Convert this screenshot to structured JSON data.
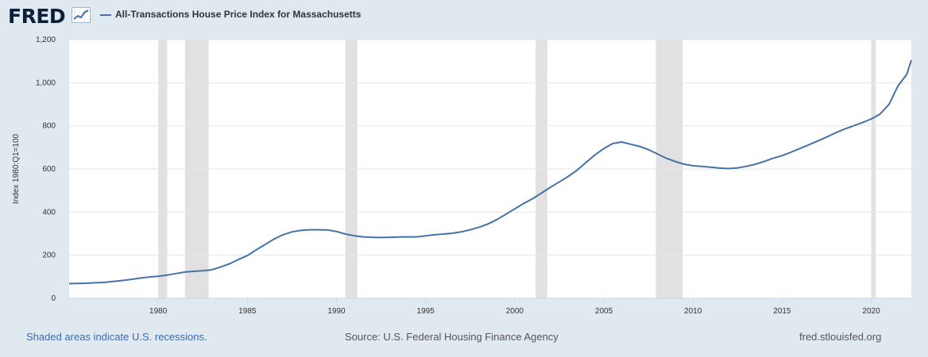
{
  "header": {
    "logo_text": "FRED",
    "logo_icon": "fred-graph-icon",
    "series_title": "All-Transactions House Price Index for Massachusetts"
  },
  "footer": {
    "recession_note": "Shaded areas indicate U.S. recessions.",
    "source": "Source: U.S. Federal Housing Finance Agency",
    "site": "fred.stlouisfed.org"
  },
  "colors": {
    "page_bg": "#e1e9f0",
    "plot_bg": "#ffffff",
    "line": "#4572a7",
    "recession": "#e1e1e1",
    "grid": "#e6e6e6"
  },
  "chart_data": {
    "type": "line",
    "title": "All-Transactions House Price Index for Massachusetts",
    "ylabel": "Index 1980:Q1=100",
    "xlabel": "",
    "xlim": [
      1975.0,
      2022.25
    ],
    "ylim": [
      0,
      1200
    ],
    "y_ticks": [
      0,
      200,
      400,
      600,
      800,
      1000,
      1200
    ],
    "y_tick_labels": [
      "0",
      "200",
      "400",
      "600",
      "800",
      "1,000",
      "1,200"
    ],
    "x_ticks": [
      1980,
      1985,
      1990,
      1995,
      2000,
      2005,
      2010,
      2015,
      2020
    ],
    "x_tick_labels": [
      "1980",
      "1985",
      "1990",
      "1995",
      "2000",
      "2005",
      "2010",
      "2015",
      "2020"
    ],
    "grid": "horizontal",
    "recessions": [
      [
        1980.0,
        1980.5
      ],
      [
        1981.5,
        1982.83
      ],
      [
        1990.5,
        1991.17
      ],
      [
        2001.17,
        2001.83
      ],
      [
        2007.92,
        2009.42
      ],
      [
        2020.0,
        2020.25
      ]
    ],
    "series": [
      {
        "name": "All-Transactions House Price Index for Massachusetts",
        "x": [
          1975.0,
          1975.5,
          1976.0,
          1976.5,
          1977.0,
          1977.5,
          1978.0,
          1978.5,
          1979.0,
          1979.5,
          1980.0,
          1980.5,
          1981.0,
          1981.5,
          1982.0,
          1982.5,
          1983.0,
          1983.5,
          1984.0,
          1984.5,
          1985.0,
          1985.5,
          1986.0,
          1986.5,
          1987.0,
          1987.5,
          1988.0,
          1988.5,
          1989.0,
          1989.5,
          1990.0,
          1990.5,
          1991.0,
          1991.5,
          1992.0,
          1992.5,
          1993.0,
          1993.5,
          1994.0,
          1994.5,
          1995.0,
          1995.5,
          1996.0,
          1996.5,
          1997.0,
          1997.5,
          1998.0,
          1998.5,
          1999.0,
          1999.5,
          2000.0,
          2000.5,
          2001.0,
          2001.5,
          2002.0,
          2002.5,
          2003.0,
          2003.5,
          2004.0,
          2004.5,
          2005.0,
          2005.5,
          2006.0,
          2006.5,
          2007.0,
          2007.5,
          2008.0,
          2008.5,
          2009.0,
          2009.5,
          2010.0,
          2010.5,
          2011.0,
          2011.5,
          2012.0,
          2012.5,
          2013.0,
          2013.5,
          2014.0,
          2014.5,
          2015.0,
          2015.5,
          2016.0,
          2016.5,
          2017.0,
          2017.5,
          2018.0,
          2018.5,
          2019.0,
          2019.5,
          2020.0,
          2020.5,
          2021.0,
          2021.5,
          2022.0,
          2022.25
        ],
        "values": [
          68,
          69,
          70,
          72,
          74,
          78,
          83,
          88,
          94,
          99,
          102,
          108,
          115,
          122,
          125,
          128,
          132,
          145,
          160,
          180,
          198,
          225,
          250,
          275,
          295,
          308,
          315,
          318,
          318,
          317,
          310,
          298,
          290,
          285,
          283,
          282,
          283,
          284,
          285,
          285,
          290,
          295,
          298,
          302,
          308,
          318,
          330,
          345,
          365,
          390,
          415,
          440,
          462,
          488,
          515,
          540,
          565,
          595,
          630,
          665,
          695,
          718,
          725,
          715,
          705,
          690,
          670,
          650,
          635,
          622,
          615,
          612,
          608,
          604,
          602,
          605,
          612,
          622,
          635,
          650,
          662,
          678,
          695,
          712,
          730,
          748,
          768,
          785,
          800,
          815,
          832,
          855,
          900,
          985,
          1040,
          1105
        ]
      }
    ]
  }
}
